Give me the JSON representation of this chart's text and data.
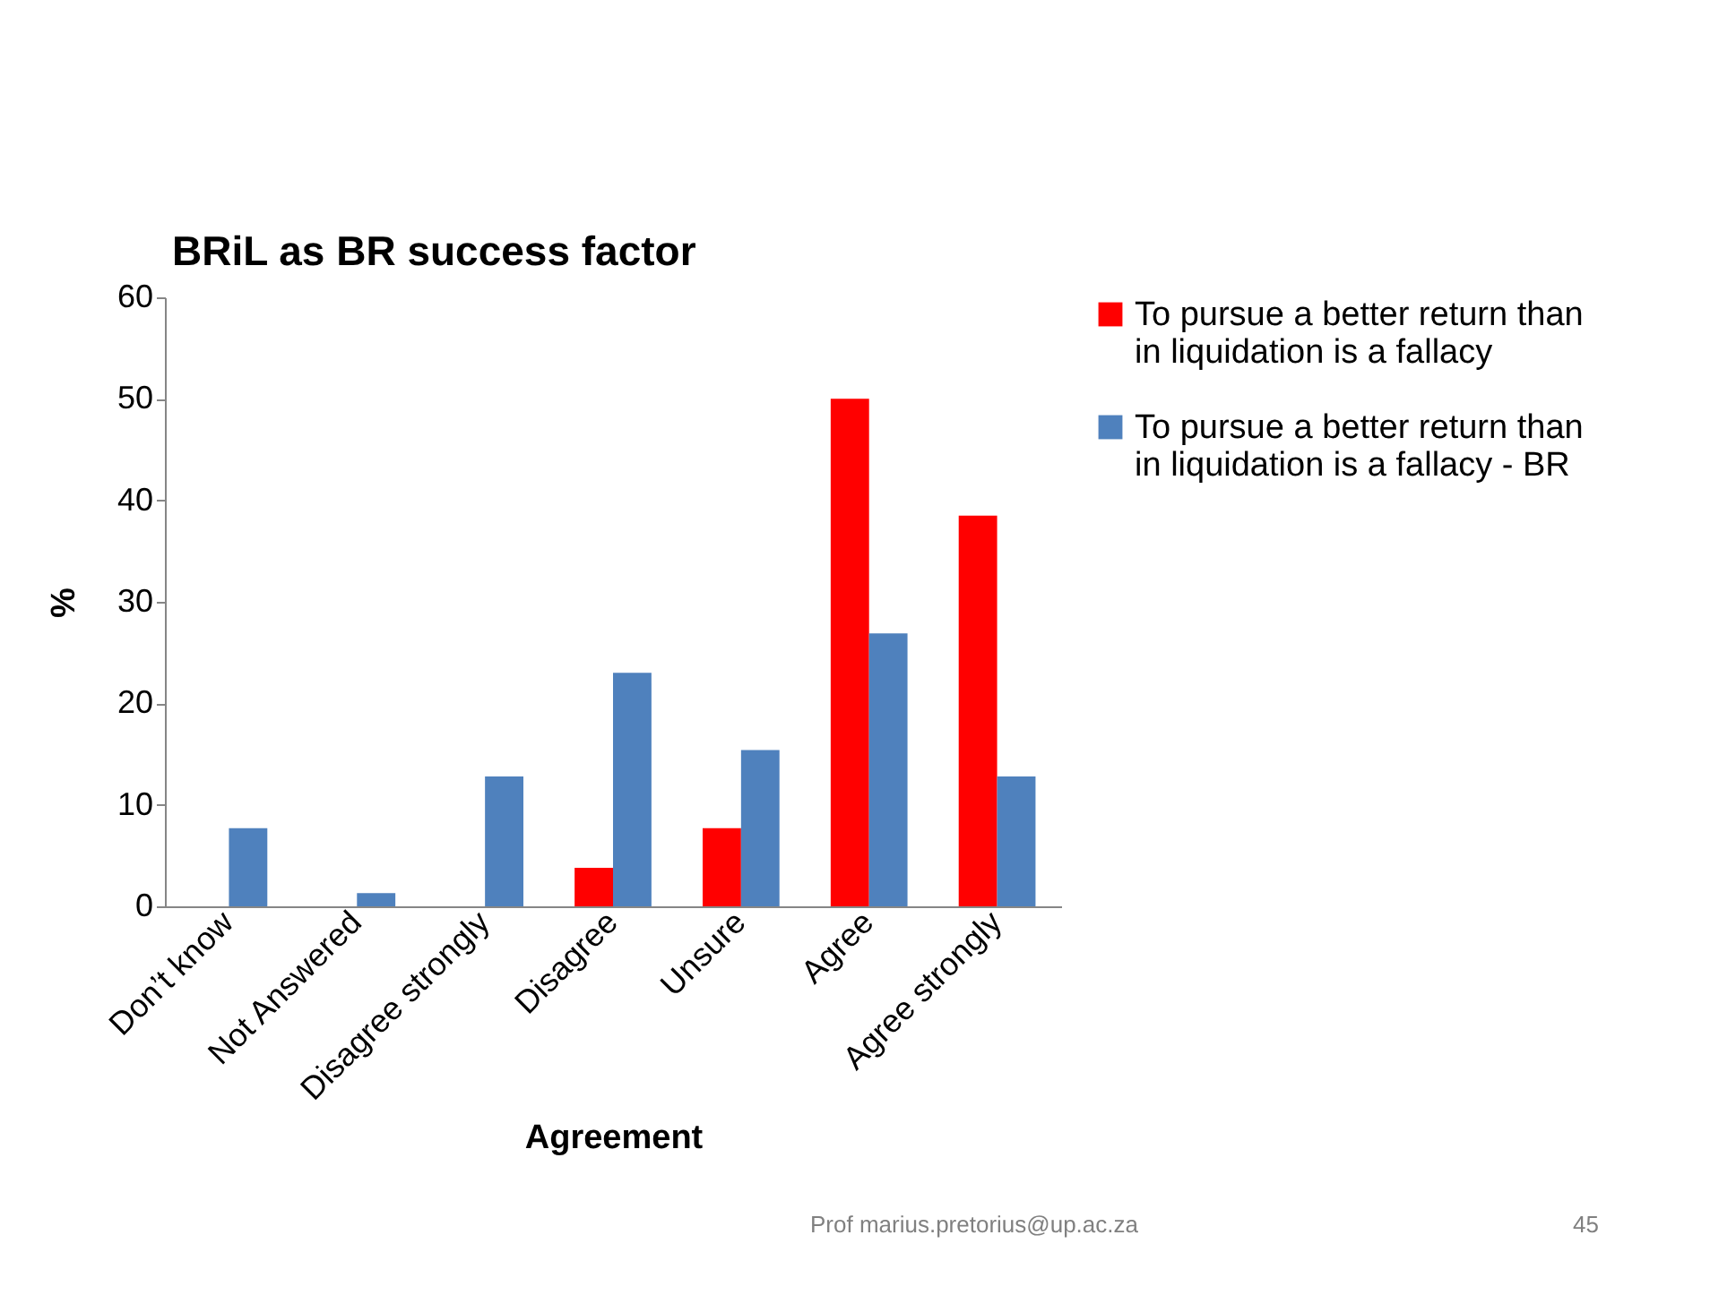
{
  "chart_data": {
    "type": "bar",
    "title": "BRiL as BR success factor",
    "xlabel": "Agreement",
    "ylabel": "%",
    "categories": [
      "Don’t know",
      "Not Answered",
      "Disagree strongly",
      "Disagree",
      "Unsure",
      "Agree",
      "Agree strongly"
    ],
    "series": [
      {
        "name": "To pursue a better return than in liquidation is a fallacy",
        "color": "#ff0000",
        "values": [
          0,
          0,
          0,
          3.8,
          7.7,
          50,
          38.5
        ]
      },
      {
        "name": "To pursue a better return than in liquidation is a fallacy - BR",
        "color": "#4f81bd",
        "values": [
          7.7,
          1.3,
          12.8,
          23,
          15.4,
          26.9,
          12.8
        ]
      }
    ],
    "ylim": [
      0,
      60
    ],
    "yticks": [
      0,
      10,
      20,
      30,
      40,
      50,
      60
    ],
    "grid": false,
    "legend": "right",
    "annotations": [
      "Prof marius.pretorius@up.ac.za",
      "45"
    ]
  }
}
